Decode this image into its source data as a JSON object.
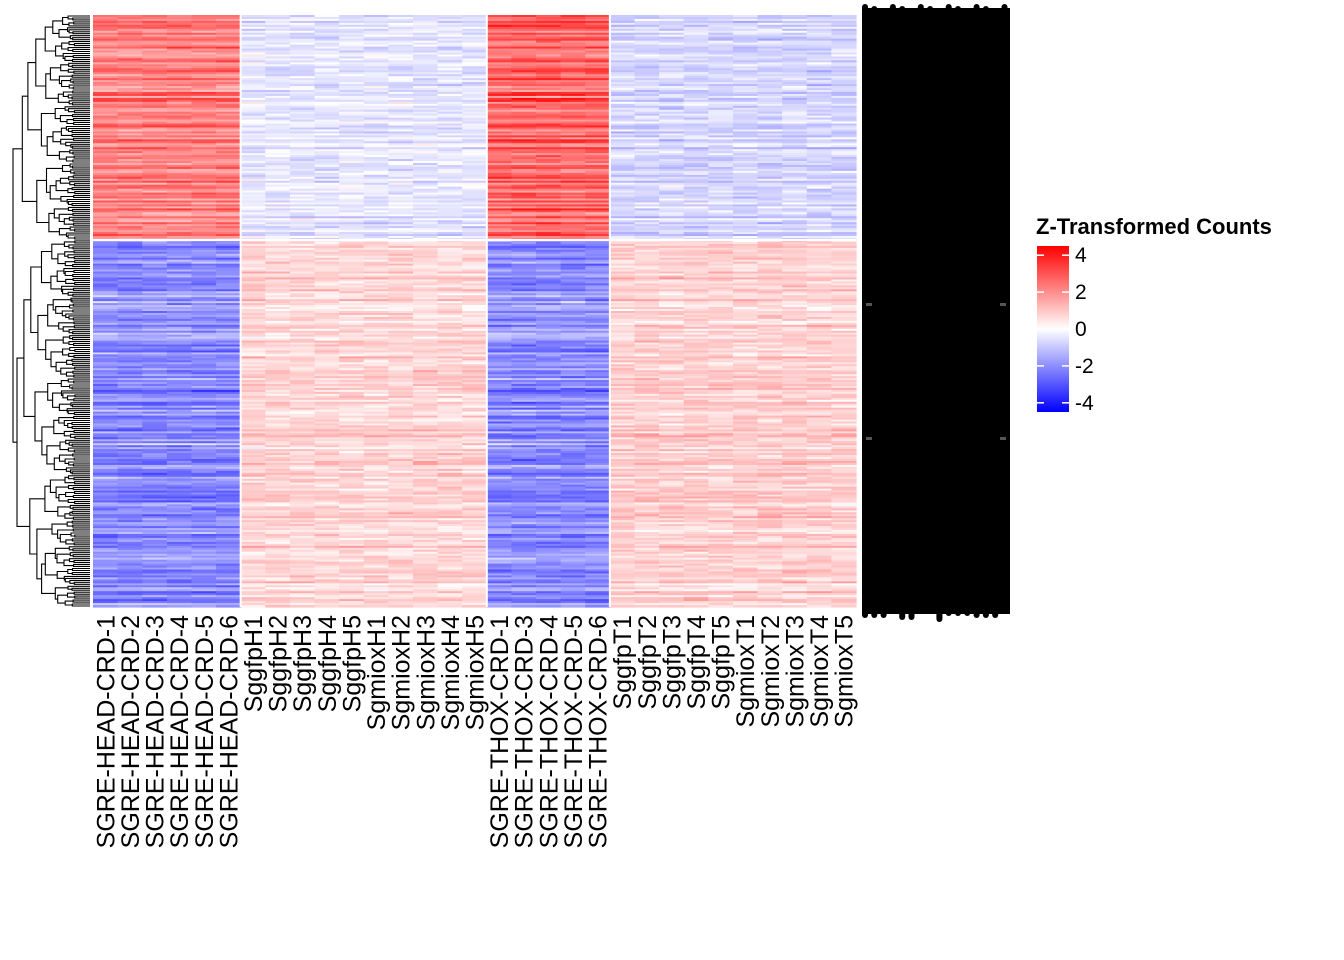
{
  "chart_data": {
    "type": "heatmap",
    "title": "",
    "xlabel": "",
    "ylabel": "",
    "row_count": 300,
    "columns": [
      "SGRE-HEAD-CRD-1",
      "SGRE-HEAD-CRD-2",
      "SGRE-HEAD-CRD-3",
      "SGRE-HEAD-CRD-4",
      "SGRE-HEAD-CRD-5",
      "SGRE-HEAD-CRD-6",
      "SggfpH1",
      "SggfpH2",
      "SggfpH3",
      "SggfpH4",
      "SggfpH5",
      "SgmioxH1",
      "SgmioxH2",
      "SgmioxH3",
      "SgmioxH4",
      "SgmioxH5",
      "SGRE-THOX-CRD-1",
      "SGRE-THOX-CRD-3",
      "SGRE-THOX-CRD-4",
      "SGRE-THOX-CRD-5",
      "SGRE-THOX-CRD-6",
      "SggfpT1",
      "SggfpT2",
      "SggfpT3",
      "SggfpT4",
      "SggfpT5",
      "SgmioxT1",
      "SgmioxT2",
      "SgmioxT3",
      "SgmioxT4",
      "SgmioxT5"
    ],
    "cluster_split_fraction": 0.38,
    "approx_block_means": {
      "top_cluster": {
        "SGRE-HEAD-CRD": 2.5,
        "SggfpH_SgmioxH": -0.5,
        "SGRE-THOX-CRD": 3.0,
        "SggfpT_SgmioxT": -0.8
      },
      "bottom_cluster": {
        "SGRE-HEAD-CRD": -2.2,
        "SggfpH_SgmioxH": 0.8,
        "SGRE-THOX-CRD": -2.2,
        "SggfpT_SgmioxT": 0.9
      }
    },
    "legend": {
      "title": "Z-Transformed Counts",
      "ticks": [
        "4",
        "2",
        "0",
        "-2",
        "-4"
      ],
      "tick_values": [
        4,
        2,
        0,
        -2,
        -4
      ],
      "range": [
        -4.5,
        4.5
      ]
    },
    "colors": {
      "low": "#0000ff",
      "mid": "#ffffff",
      "high": "#ff0000"
    }
  }
}
